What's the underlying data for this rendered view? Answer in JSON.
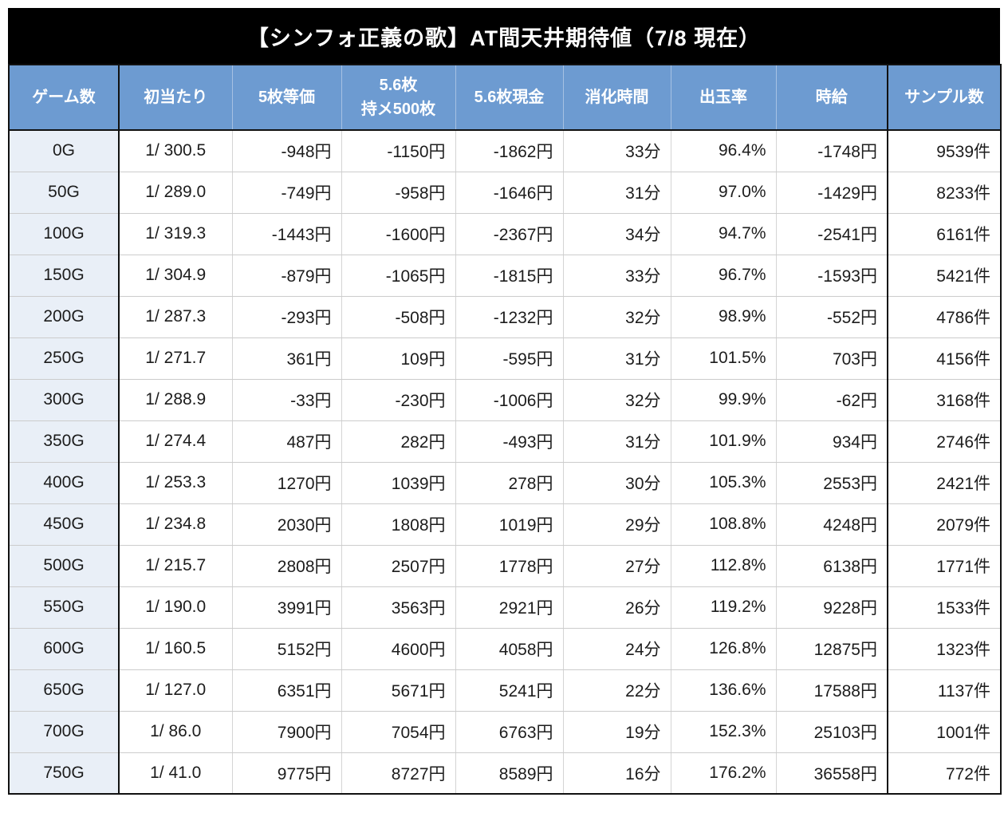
{
  "title": "【シンフォ正義の歌】AT間天井期待値（7/8 現在）",
  "colors": {
    "negative_value": "#cc3333",
    "positive_value": "#2525d8",
    "header_background": "#6d9bd1",
    "header_text": "#ffffff",
    "row_label_background": "#e9eff7",
    "title_background": "#000000",
    "title_text": "#ffffff"
  },
  "table": {
    "columns": [
      {
        "key": "games",
        "label": "ゲーム数",
        "align": "center",
        "color_rule": "none"
      },
      {
        "key": "first-hit",
        "label": "初当たり",
        "align": "center",
        "color_rule": "none"
      },
      {
        "key": "equal-5",
        "label": "5枚等価",
        "align": "right",
        "color_rule": "sign"
      },
      {
        "key": "rate-56-hold500",
        "label": "5.6枚\n持メ500枚",
        "align": "right",
        "color_rule": "sign"
      },
      {
        "key": "cash-56",
        "label": "5.6枚現金",
        "align": "right",
        "color_rule": "sign"
      },
      {
        "key": "time",
        "label": "消化時間",
        "align": "right",
        "color_rule": "none"
      },
      {
        "key": "payout-rate",
        "label": "出玉率",
        "align": "right",
        "color_rule": "percent"
      },
      {
        "key": "hourly-wage",
        "label": "時給",
        "align": "right",
        "color_rule": "sign"
      },
      {
        "key": "samples",
        "label": "サンプル数",
        "align": "right",
        "color_rule": "none"
      }
    ],
    "rows": [
      [
        "0G",
        "1/ 300.5",
        "-948円",
        "-1150円",
        "-1862円",
        "33分",
        "96.4%",
        "-1748円",
        "9539件"
      ],
      [
        "50G",
        "1/ 289.0",
        "-749円",
        "-958円",
        "-1646円",
        "31分",
        "97.0%",
        "-1429円",
        "8233件"
      ],
      [
        "100G",
        "1/ 319.3",
        "-1443円",
        "-1600円",
        "-2367円",
        "34分",
        "94.7%",
        "-2541円",
        "6161件"
      ],
      [
        "150G",
        "1/ 304.9",
        "-879円",
        "-1065円",
        "-1815円",
        "33分",
        "96.7%",
        "-1593円",
        "5421件"
      ],
      [
        "200G",
        "1/ 287.3",
        "-293円",
        "-508円",
        "-1232円",
        "32分",
        "98.9%",
        "-552円",
        "4786件"
      ],
      [
        "250G",
        "1/ 271.7",
        "361円",
        "109円",
        "-595円",
        "31分",
        "101.5%",
        "703円",
        "4156件"
      ],
      [
        "300G",
        "1/ 288.9",
        "-33円",
        "-230円",
        "-1006円",
        "32分",
        "99.9%",
        "-62円",
        "3168件"
      ],
      [
        "350G",
        "1/ 274.4",
        "487円",
        "282円",
        "-493円",
        "31分",
        "101.9%",
        "934円",
        "2746件"
      ],
      [
        "400G",
        "1/ 253.3",
        "1270円",
        "1039円",
        "278円",
        "30分",
        "105.3%",
        "2553円",
        "2421件"
      ],
      [
        "450G",
        "1/ 234.8",
        "2030円",
        "1808円",
        "1019円",
        "29分",
        "108.8%",
        "4248円",
        "2079件"
      ],
      [
        "500G",
        "1/ 215.7",
        "2808円",
        "2507円",
        "1778円",
        "27分",
        "112.8%",
        "6138円",
        "1771件"
      ],
      [
        "550G",
        "1/ 190.0",
        "3991円",
        "3563円",
        "2921円",
        "26分",
        "119.2%",
        "9228円",
        "1533件"
      ],
      [
        "600G",
        "1/ 160.5",
        "5152円",
        "4600円",
        "4058円",
        "24分",
        "126.8%",
        "12875円",
        "1323件"
      ],
      [
        "650G",
        "1/ 127.0",
        "6351円",
        "5671円",
        "5241円",
        "22分",
        "136.6%",
        "17588円",
        "1137件"
      ],
      [
        "700G",
        "1/ 86.0",
        "7900円",
        "7054円",
        "6763円",
        "19分",
        "152.3%",
        "25103円",
        "1001件"
      ],
      [
        "750G",
        "1/ 41.0",
        "9775円",
        "8727円",
        "8589円",
        "16分",
        "176.2%",
        "36558円",
        "772件"
      ]
    ]
  }
}
